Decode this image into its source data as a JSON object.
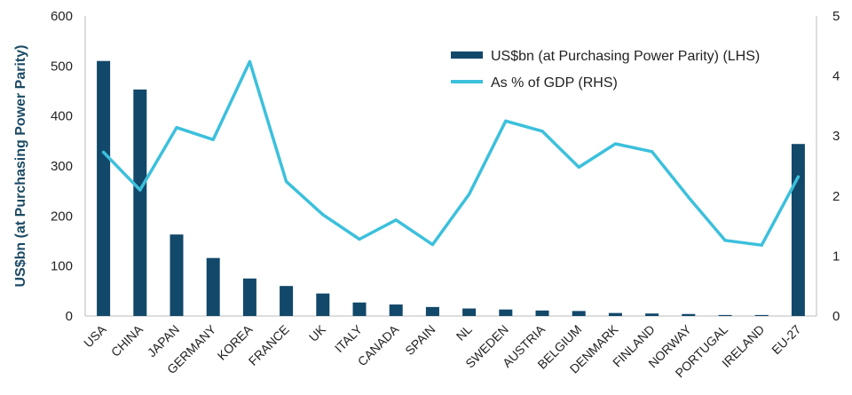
{
  "chart_data": {
    "type": "bar+line",
    "title": "",
    "ylabel": "US$bn (at Purchasing Power Parity)",
    "categories": [
      "USA",
      "CHINA",
      "JAPAN",
      "GERMANY",
      "KOREA",
      "FRANCE",
      "UK",
      "ITALY",
      "CANADA",
      "SPAIN",
      "NL",
      "SWEDEN",
      "AUSTRIA",
      "BELGIUM",
      "DENMARK",
      "FINLAND",
      "NORWAY",
      "PORTUGAL",
      "IRELAND",
      "EU-27"
    ],
    "left_axis": {
      "ylim": [
        0,
        600
      ],
      "ticks": [
        "0",
        "100",
        "200",
        "300",
        "400",
        "500",
        "600"
      ]
    },
    "right_axis": {
      "ylim": [
        0,
        5
      ],
      "ticks": [
        "0",
        "1",
        "2",
        "3",
        "4",
        "5"
      ]
    },
    "series": [
      {
        "name": "US$bn (at Purchasing Power Parity) (LHS)",
        "kind": "bar",
        "axis": "left",
        "color": "#12486a",
        "values": [
          510,
          453,
          163,
          116,
          75,
          60,
          45,
          27,
          23,
          18,
          15,
          13,
          11,
          10,
          6,
          5,
          4,
          2,
          2,
          344
        ]
      },
      {
        "name": "As % of GDP (RHS)",
        "kind": "line",
        "axis": "right",
        "color": "#3cc0dc",
        "values": [
          2.73,
          2.1,
          3.14,
          2.94,
          4.24,
          2.24,
          1.69,
          1.28,
          1.6,
          1.19,
          2.03,
          3.25,
          3.08,
          2.48,
          2.87,
          2.74,
          1.98,
          1.26,
          1.18,
          2.32
        ]
      }
    ],
    "grid": false,
    "legend_position": "top-right"
  }
}
